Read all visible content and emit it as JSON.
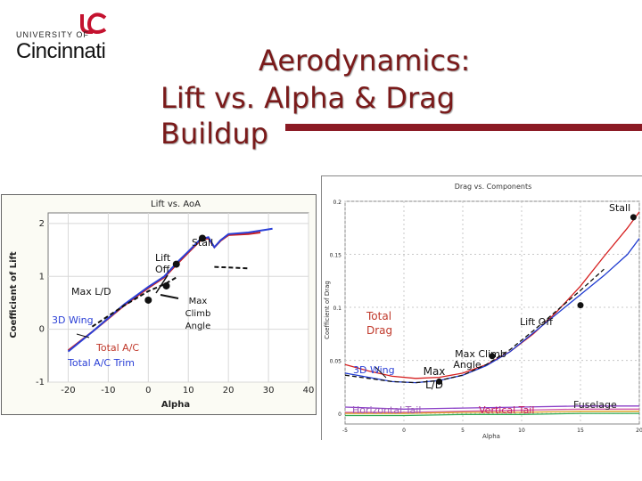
{
  "header": {
    "logo_top": "UNIVERSITY OF",
    "logo_name": "Cincinnati",
    "logo_brand_color": "#c4122f",
    "title_line1": "Aerodynamics:",
    "title_line2": "Lift vs. Alpha & Drag Buildup",
    "title_color": "#7a1a1a",
    "rule_color": "#8b1a24"
  },
  "chart_data": [
    {
      "type": "line",
      "title": "Lift vs. AoA",
      "xlabel": "Alpha",
      "ylabel": "Coefficient of Lift",
      "xlim": [
        -25,
        40
      ],
      "ylim": [
        -1,
        2.2
      ],
      "xticks": [
        -20,
        -10,
        0,
        10,
        20,
        30,
        40
      ],
      "yticks": [
        -1,
        0,
        1,
        2
      ],
      "grid": true,
      "series": [
        {
          "color": "#cc1f1f",
          "points": [
            [
              -20,
              -0.4
            ],
            [
              -14,
              -0.05
            ],
            [
              -6,
              0.45
            ],
            [
              0,
              0.78
            ],
            [
              4,
              0.98
            ],
            [
              7,
              1.22
            ],
            [
              10,
              1.45
            ],
            [
              13,
              1.68
            ],
            [
              15,
              1.72
            ],
            [
              16.5,
              1.55
            ],
            [
              18,
              1.67
            ],
            [
              20,
              1.78
            ],
            [
              25,
              1.8
            ],
            [
              28,
              1.83
            ]
          ]
        },
        {
          "color": "#2a3fd6",
          "points": [
            [
              -20,
              -0.42
            ],
            [
              -14,
              -0.05
            ],
            [
              -6,
              0.47
            ],
            [
              0,
              0.8
            ],
            [
              4,
              1.0
            ],
            [
              7,
              1.25
            ],
            [
              10,
              1.47
            ],
            [
              13,
              1.7
            ],
            [
              15,
              1.74
            ],
            [
              16.5,
              1.55
            ],
            [
              18,
              1.68
            ],
            [
              20,
              1.8
            ],
            [
              25,
              1.83
            ],
            [
              31,
              1.9
            ]
          ]
        },
        {
          "color": "#111111",
          "dashed": true,
          "points": [
            [
              -14,
              0.05
            ],
            [
              -6,
              0.45
            ],
            [
              0,
              0.72
            ],
            [
              4,
              0.85
            ],
            [
              7,
              0.98
            ]
          ]
        },
        {
          "color": "#111111",
          "dashed": true,
          "points": [
            [
              16.5,
              1.18
            ],
            [
              25,
              1.15
            ]
          ]
        }
      ],
      "markers": [
        {
          "name": "max-ld",
          "x": 0,
          "y": 0.55
        },
        {
          "name": "max-climb",
          "x": 4.5,
          "y": 0.82
        },
        {
          "name": "lift-off",
          "x": 7,
          "y": 1.23
        },
        {
          "name": "stall",
          "x": 13.5,
          "y": 1.72
        }
      ],
      "annotations": {
        "stall": "Stall",
        "lift_off_1": "Lift",
        "lift_off_2": "Off",
        "max_ld": "Max L/D",
        "max_climb_1": "Max",
        "max_climb_2": "Climb",
        "max_climb_3": "Angle",
        "wing": "3D Wing",
        "total": "Total A/C",
        "trim": "Total A/C Trim"
      },
      "colors": {
        "label_red": "#c0392b",
        "label_blue": "#2a3fd6"
      }
    },
    {
      "type": "line",
      "title": "Drag vs. Components",
      "xlabel": "Alpha",
      "ylabel": "Coefficient of Drag",
      "xlim": [
        -5,
        20
      ],
      "ylim": [
        -0.01,
        0.2
      ],
      "xticks": [
        -5,
        0,
        5,
        10,
        15,
        20
      ],
      "xtick_labels": [
        "-5",
        "0",
        "5",
        "10",
        "15",
        "20"
      ],
      "yticks": [
        0,
        0.05,
        0.1,
        0.15,
        0.2
      ],
      "ytick_labels": [
        "0",
        "0.05",
        "0.1",
        "0.15",
        "0.2"
      ],
      "grid": true,
      "series": [
        {
          "color": "#d62020",
          "points": [
            [
              -5,
              0.046
            ],
            [
              -3,
              0.04
            ],
            [
              -1,
              0.035
            ],
            [
              1,
              0.033
            ],
            [
              3,
              0.034
            ],
            [
              5,
              0.038
            ],
            [
              7,
              0.046
            ],
            [
              9,
              0.058
            ],
            [
              11,
              0.075
            ],
            [
              13,
              0.096
            ],
            [
              15,
              0.12
            ],
            [
              17,
              0.148
            ],
            [
              19,
              0.175
            ],
            [
              20,
              0.19
            ]
          ]
        },
        {
          "color": "#1f3bd0",
          "points": [
            [
              -5,
              0.038
            ],
            [
              -3,
              0.034
            ],
            [
              -1,
              0.03
            ],
            [
              1,
              0.029
            ],
            [
              3,
              0.031
            ],
            [
              5,
              0.036
            ],
            [
              7,
              0.045
            ],
            [
              9,
              0.058
            ],
            [
              11,
              0.076
            ],
            [
              13,
              0.094
            ],
            [
              15,
              0.112
            ],
            [
              17,
              0.13
            ],
            [
              19,
              0.15
            ],
            [
              20,
              0.165
            ]
          ]
        },
        {
          "color": "#111111",
          "dashed": true,
          "points": [
            [
              -5,
              0.036
            ],
            [
              -3,
              0.033
            ],
            [
              -1,
              0.03
            ],
            [
              1,
              0.029
            ],
            [
              3,
              0.031
            ],
            [
              5,
              0.036
            ],
            [
              7,
              0.046
            ],
            [
              9,
              0.06
            ],
            [
              11,
              0.078
            ],
            [
              13,
              0.097
            ],
            [
              15,
              0.116
            ],
            [
              17,
              0.136
            ]
          ]
        },
        {
          "color": "#8a3fc7",
          "points": [
            [
              -5,
              0.006
            ],
            [
              0,
              0.004
            ],
            [
              5,
              0.005
            ],
            [
              10,
              0.006
            ],
            [
              15,
              0.007
            ],
            [
              20,
              0.007
            ]
          ]
        },
        {
          "color": "#d35aa8",
          "points": [
            [
              -5,
              0.001
            ],
            [
              0,
              0.001
            ],
            [
              5,
              0.002
            ],
            [
              10,
              0.003
            ],
            [
              15,
              0.004
            ],
            [
              20,
              0.004
            ]
          ]
        },
        {
          "color": "#e0a020",
          "points": [
            [
              -5,
              0.0
            ],
            [
              0,
              0.0
            ],
            [
              5,
              0.001
            ],
            [
              10,
              0.001
            ],
            [
              15,
              0.002
            ],
            [
              20,
              0.002
            ]
          ]
        },
        {
          "color": "#2fa84f",
          "points": [
            [
              -5,
              -0.002
            ],
            [
              0,
              -0.002
            ],
            [
              5,
              -0.001
            ],
            [
              10,
              -0.001
            ],
            [
              15,
              0.0
            ],
            [
              20,
              0.0
            ]
          ]
        }
      ],
      "markers": [
        {
          "name": "stall",
          "x": 19.5,
          "y": 0.185
        },
        {
          "name": "lift-off",
          "x": 15,
          "y": 0.102
        },
        {
          "name": "max-climb",
          "x": 7.5,
          "y": 0.054
        },
        {
          "name": "max-ld",
          "x": 3,
          "y": 0.03
        }
      ],
      "annotations": {
        "stall": "Stall",
        "lift_off": "Lift Off",
        "total_drag_1": "Total",
        "total_drag_2": "Drag",
        "max_climb_1": "Max Climb",
        "max_climb_2": "Angle",
        "max_ld_1": "Max",
        "max_ld_2": "L/D",
        "wing": "3D Wing",
        "h_tail": "Horizontal Tail",
        "v_tail": "Vertical Tail",
        "fuselage": "Fuselage"
      },
      "colors": {
        "total_drag": "#c0392b",
        "wing": "#2a3fd6",
        "h_tail": "#9b59b6",
        "v_tail": "#c2185b",
        "fuselage": "#222222"
      }
    }
  ]
}
